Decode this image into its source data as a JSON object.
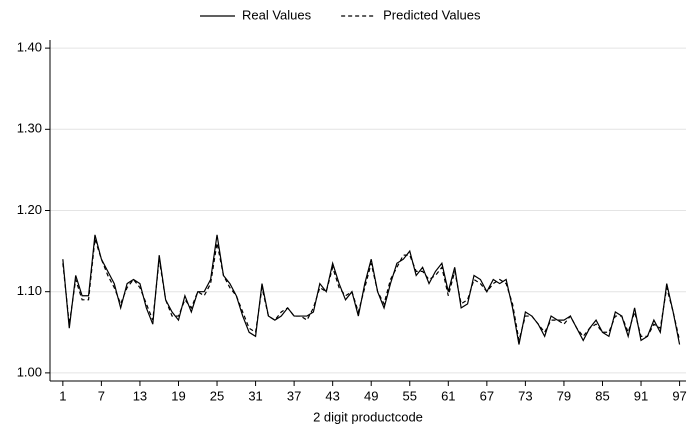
{
  "chart_data": {
    "type": "line",
    "x_label": "2 digit productcode",
    "x": [
      1,
      2,
      3,
      4,
      5,
      6,
      7,
      8,
      9,
      10,
      11,
      12,
      13,
      14,
      15,
      16,
      17,
      18,
      19,
      20,
      21,
      22,
      23,
      24,
      25,
      26,
      27,
      28,
      29,
      30,
      31,
      32,
      33,
      34,
      35,
      36,
      37,
      38,
      39,
      40,
      41,
      42,
      43,
      44,
      45,
      46,
      47,
      48,
      49,
      50,
      51,
      52,
      53,
      54,
      55,
      56,
      57,
      58,
      59,
      60,
      61,
      62,
      63,
      64,
      65,
      66,
      67,
      68,
      69,
      70,
      71,
      72,
      73,
      74,
      75,
      76,
      77,
      78,
      79,
      80,
      81,
      82,
      83,
      84,
      85,
      86,
      87,
      88,
      89,
      90,
      91,
      92,
      93,
      94,
      95,
      96,
      97
    ],
    "series": [
      {
        "name": "Real Values",
        "color": "#000000",
        "dash": "none",
        "values": [
          1.14,
          1.055,
          1.12,
          1.095,
          1.095,
          1.17,
          1.14,
          1.125,
          1.11,
          1.08,
          1.11,
          1.115,
          1.11,
          1.08,
          1.06,
          1.145,
          1.09,
          1.075,
          1.065,
          1.095,
          1.075,
          1.1,
          1.1,
          1.115,
          1.17,
          1.12,
          1.11,
          1.095,
          1.07,
          1.05,
          1.045,
          1.11,
          1.07,
          1.065,
          1.07,
          1.08,
          1.07,
          1.07,
          1.07,
          1.075,
          1.11,
          1.1,
          1.135,
          1.11,
          1.09,
          1.1,
          1.07,
          1.11,
          1.14,
          1.1,
          1.08,
          1.11,
          1.135,
          1.14,
          1.15,
          1.12,
          1.13,
          1.11,
          1.125,
          1.135,
          1.1,
          1.13,
          1.08,
          1.085,
          1.12,
          1.115,
          1.1,
          1.115,
          1.11,
          1.115,
          1.08,
          1.035,
          1.075,
          1.07,
          1.06,
          1.045,
          1.07,
          1.065,
          1.065,
          1.07,
          1.055,
          1.04,
          1.055,
          1.065,
          1.05,
          1.045,
          1.075,
          1.07,
          1.045,
          1.08,
          1.04,
          1.045,
          1.065,
          1.05,
          1.11,
          1.075,
          1.035
        ]
      },
      {
        "name": "Predicted Values",
        "color": "#000000",
        "dash": "4,3",
        "values": [
          1.135,
          1.06,
          1.115,
          1.09,
          1.09,
          1.165,
          1.14,
          1.12,
          1.105,
          1.085,
          1.105,
          1.115,
          1.105,
          1.085,
          1.065,
          1.14,
          1.09,
          1.07,
          1.07,
          1.09,
          1.08,
          1.1,
          1.095,
          1.11,
          1.16,
          1.12,
          1.105,
          1.095,
          1.075,
          1.055,
          1.05,
          1.105,
          1.07,
          1.065,
          1.075,
          1.08,
          1.07,
          1.07,
          1.065,
          1.08,
          1.105,
          1.1,
          1.13,
          1.105,
          1.095,
          1.1,
          1.075,
          1.105,
          1.135,
          1.1,
          1.085,
          1.115,
          1.13,
          1.145,
          1.145,
          1.125,
          1.125,
          1.115,
          1.12,
          1.13,
          1.095,
          1.125,
          1.085,
          1.09,
          1.115,
          1.11,
          1.1,
          1.11,
          1.115,
          1.11,
          1.085,
          1.04,
          1.07,
          1.07,
          1.06,
          1.05,
          1.065,
          1.065,
          1.06,
          1.07,
          1.055,
          1.045,
          1.055,
          1.06,
          1.05,
          1.05,
          1.07,
          1.07,
          1.05,
          1.075,
          1.045,
          1.045,
          1.06,
          1.055,
          1.105,
          1.075,
          1.04
        ]
      }
    ],
    "xlim": [
      -1,
      98
    ],
    "xticks": [
      1,
      7,
      13,
      19,
      25,
      31,
      37,
      43,
      49,
      55,
      61,
      67,
      73,
      79,
      85,
      91,
      97
    ],
    "ylim": [
      0.99,
      1.41
    ],
    "yticks": [
      {
        "value": 1.0,
        "label": "1.00"
      },
      {
        "value": 1.1,
        "label": "1.10"
      },
      {
        "value": 1.2,
        "label": "1.20"
      },
      {
        "value": 1.3,
        "label": "1.30"
      },
      {
        "value": 1.4,
        "label": "1.40"
      }
    ],
    "grid": true,
    "legend": "top"
  }
}
